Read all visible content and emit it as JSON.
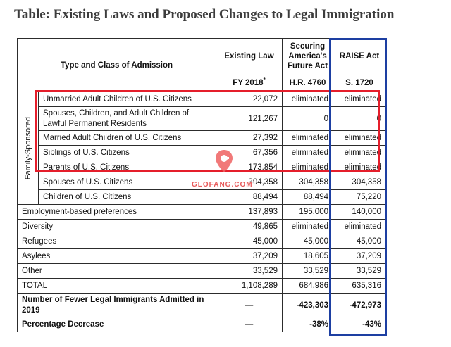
{
  "title": "Table: Existing Laws and Proposed Changes to Legal Immigration",
  "header": {
    "type_label": "Type and Class of Admission",
    "existing": {
      "line1": "Existing Law",
      "line2": "FY 2018",
      "sup": "*"
    },
    "securing": {
      "line1": "Securing",
      "line2": "America's",
      "line3": "Future Act",
      "line4": "H.R. 4760"
    },
    "raise": {
      "line1": "RAISE Act",
      "line2": "S. 1720"
    }
  },
  "group_label": "Family-Sponsored",
  "family_rows": [
    {
      "label": "Unmarried Adult Children of U.S. Citizens",
      "existing": "22,072",
      "securing": "eliminated",
      "raise": "eliminated"
    },
    {
      "label": "Spouses, Children, and Adult Children of Lawful Permanent Residents",
      "existing": "121,267",
      "securing": "0",
      "raise": "0"
    },
    {
      "label": "Married Adult Children of U.S. Citizens",
      "existing": "27,392",
      "securing": "eliminated",
      "raise": "eliminated"
    },
    {
      "label": "Siblings of U.S. Citizens",
      "existing": "67,356",
      "securing": "eliminated",
      "raise": "eliminated"
    },
    {
      "label": "Parents of U.S. Citizens",
      "existing": "173,854",
      "securing": "eliminated",
      "raise": "eliminated"
    },
    {
      "label": "Spouses of U.S. Citizens",
      "existing": "304,358",
      "securing": "304,358",
      "raise": "304,358"
    },
    {
      "label": "Children of U.S. Citizens",
      "existing": "88,494",
      "securing": "88,494",
      "raise": "75,220"
    }
  ],
  "other_rows": [
    {
      "label": "Employment-based preferences",
      "existing": "137,893",
      "securing": "195,000",
      "raise": "140,000"
    },
    {
      "label": "Diversity",
      "existing": "49,865",
      "securing": "eliminated",
      "raise": "eliminated"
    },
    {
      "label": "Refugees",
      "existing": "45,000",
      "securing": "45,000",
      "raise": "45,000"
    },
    {
      "label": "Asylees",
      "existing": "37,209",
      "securing": "18,605",
      "raise": "37,209"
    },
    {
      "label": "Other",
      "existing": "33,529",
      "securing": "33,529",
      "raise": "33,529"
    },
    {
      "label": "TOTAL",
      "existing": "1,108,289",
      "securing": "684,986",
      "raise": "635,316"
    }
  ],
  "summary_rows": [
    {
      "label": "Number of Fewer Legal Immigrants Admitted in 2019",
      "existing": "—",
      "securing": "-423,303",
      "raise": "-472,973"
    },
    {
      "label": "Percentage Decrease",
      "existing": "—",
      "securing": "-38%",
      "raise": "-43%"
    }
  ],
  "watermark": "GLOFANG.COM",
  "colors": {
    "red_box": "#e51e2b",
    "blue_box": "#1d3fa2",
    "title": "#3c3c3c"
  }
}
